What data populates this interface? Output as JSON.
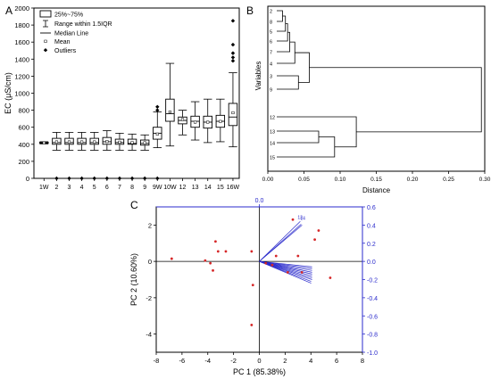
{
  "panels": {
    "a_label": "A",
    "b_label": "B",
    "c_label": "C"
  },
  "chart_data": [
    {
      "type": "box",
      "ylabel": "EC (μS/cm)",
      "ylim": [
        0,
        2000
      ],
      "yticks": [
        0,
        200,
        400,
        600,
        800,
        1000,
        1200,
        1400,
        1600,
        1800,
        2000
      ],
      "categories": [
        "1W",
        "2",
        "3",
        "4",
        "5",
        "6",
        "7",
        "8",
        "9",
        "9W",
        "10W",
        "12",
        "13",
        "14",
        "15",
        "16W"
      ],
      "legend": {
        "box": "25%~75%",
        "whisker": "Range within 1.5IQR",
        "median": "Median Line",
        "mean": "Mean",
        "outliers": "Outliers"
      },
      "boxes": [
        {
          "min": 405,
          "q1": 410,
          "median": 415,
          "q3": 425,
          "max": 430,
          "mean": 416
        },
        {
          "min": 330,
          "q1": 400,
          "median": 420,
          "q3": 470,
          "max": 540,
          "mean": 428
        },
        {
          "min": 330,
          "q1": 400,
          "median": 420,
          "q3": 470,
          "max": 540,
          "mean": 428
        },
        {
          "min": 330,
          "q1": 400,
          "median": 420,
          "q3": 470,
          "max": 540,
          "mean": 428
        },
        {
          "min": 330,
          "q1": 400,
          "median": 420,
          "q3": 470,
          "max": 540,
          "mean": 428
        },
        {
          "min": 330,
          "q1": 400,
          "median": 430,
          "q3": 480,
          "max": 560,
          "mean": 433
        },
        {
          "min": 330,
          "q1": 400,
          "median": 420,
          "q3": 460,
          "max": 530,
          "mean": 425
        },
        {
          "min": 330,
          "q1": 400,
          "median": 410,
          "q3": 460,
          "max": 520,
          "mean": 420
        },
        {
          "min": 330,
          "q1": 390,
          "median": 410,
          "q3": 450,
          "max": 510,
          "mean": 418
        },
        {
          "min": 360,
          "q1": 460,
          "median": 530,
          "q3": 600,
          "max": 780,
          "mean": 520
        },
        {
          "min": 380,
          "q1": 670,
          "median": 760,
          "q3": 930,
          "max": 1350,
          "mean": 780
        },
        {
          "min": 510,
          "q1": 640,
          "median": 680,
          "q3": 720,
          "max": 800,
          "mean": 690
        },
        {
          "min": 450,
          "q1": 600,
          "median": 670,
          "q3": 730,
          "max": 900,
          "mean": 660
        },
        {
          "min": 420,
          "q1": 590,
          "median": 660,
          "q3": 730,
          "max": 930,
          "mean": 660
        },
        {
          "min": 430,
          "q1": 600,
          "median": 670,
          "q3": 740,
          "max": 930,
          "mean": 668
        },
        {
          "min": 370,
          "q1": 620,
          "median": 720,
          "q3": 880,
          "max": 1240,
          "mean": 770
        }
      ],
      "outliers": [
        {
          "category": "2",
          "values": [
            0
          ]
        },
        {
          "category": "3",
          "values": [
            0
          ]
        },
        {
          "category": "4",
          "values": [
            0
          ]
        },
        {
          "category": "5",
          "values": [
            0
          ]
        },
        {
          "category": "6",
          "values": [
            0
          ]
        },
        {
          "category": "7",
          "values": [
            0
          ]
        },
        {
          "category": "8",
          "values": [
            0
          ]
        },
        {
          "category": "9",
          "values": [
            0
          ]
        },
        {
          "category": "9W",
          "values": [
            0,
            800,
            840
          ]
        },
        {
          "category": "16W",
          "values": [
            1380,
            1420,
            1470,
            1570,
            1850
          ]
        }
      ]
    },
    {
      "type": "dendrogram",
      "ylabel": "Variables",
      "xlabel": "Distance",
      "xlim": [
        0,
        0.3
      ],
      "xticks": [
        "0.00",
        "0.05",
        "0.10",
        "0.15",
        "0.20",
        "0.25",
        "0.30"
      ],
      "leaves": [
        "2",
        "8",
        "5",
        "6",
        "7",
        "4",
        "3",
        "9",
        "12",
        "13",
        "14",
        "15"
      ],
      "merges": [
        {
          "a": "2",
          "b": "8",
          "height": 0.008
        },
        {
          "a": "2-8",
          "b": "5",
          "height": 0.012
        },
        {
          "a": "2-8-5",
          "b": "6",
          "height": 0.015
        },
        {
          "a": "2-8-5-6",
          "b": "7",
          "height": 0.018
        },
        {
          "a": "2-8-5-6-7",
          "b": "4",
          "height": 0.025
        },
        {
          "a": "3",
          "b": "9",
          "height": 0.03
        },
        {
          "a": "G1",
          "b": "G2",
          "height": 0.045
        },
        {
          "a": "13",
          "b": "14",
          "height": 0.058
        },
        {
          "a": "13-14",
          "b": "15",
          "height": 0.08
        },
        {
          "a": "12",
          "b": "G3",
          "height": 0.11
        },
        {
          "a": "GA",
          "b": "GB",
          "height": 0.283
        }
      ]
    },
    {
      "type": "biplot",
      "xlabel": "PC 1 (85.38%)",
      "ylabel": "PC 2 (10.60%)",
      "xlim": [
        -8,
        8
      ],
      "ylim": [
        -5,
        3
      ],
      "xticks": [
        -8,
        -6,
        -4,
        -2,
        0,
        2,
        4,
        6,
        8
      ],
      "yticks": [
        -4,
        -2,
        0,
        2
      ],
      "top_axis": {
        "ticks": [
          "0.0"
        ]
      },
      "right_axis": {
        "ticks": [
          "0.6",
          "0.4",
          "0.2",
          "0.0",
          "-0.2",
          "-0.4",
          "-0.6",
          "-0.8",
          "-1.0"
        ]
      },
      "scores": [
        {
          "x": -6.8,
          "y": 0.15
        },
        {
          "x": -4.2,
          "y": 0.05
        },
        {
          "x": -3.8,
          "y": -0.1
        },
        {
          "x": -3.6,
          "y": -0.5
        },
        {
          "x": -3.4,
          "y": 1.1
        },
        {
          "x": -3.2,
          "y": 0.55
        },
        {
          "x": -2.6,
          "y": 0.55
        },
        {
          "x": -0.6,
          "y": 0.55
        },
        {
          "x": -0.5,
          "y": -1.3
        },
        {
          "x": -0.6,
          "y": -3.5
        },
        {
          "x": 0.5,
          "y": -0.1
        },
        {
          "x": 1.0,
          "y": -0.2
        },
        {
          "x": 1.3,
          "y": 0.3
        },
        {
          "x": 2.2,
          "y": -0.6
        },
        {
          "x": 2.6,
          "y": 2.3
        },
        {
          "x": 3.0,
          "y": 0.3
        },
        {
          "x": 3.3,
          "y": -0.6
        },
        {
          "x": 4.3,
          "y": 1.2
        },
        {
          "x": 4.6,
          "y": 1.7
        },
        {
          "x": 5.5,
          "y": -0.9
        }
      ],
      "loadings": [
        {
          "label": "13",
          "x": 0.45,
          "y": 0.44
        },
        {
          "label": "14",
          "x": 0.46,
          "y": 0.41
        },
        {
          "label": "",
          "x": 0.47,
          "y": 0.4
        },
        {
          "label": "",
          "x": 0.58,
          "y": -0.06
        },
        {
          "label": "",
          "x": 0.58,
          "y": -0.08
        },
        {
          "label": "",
          "x": 0.58,
          "y": -0.1
        },
        {
          "label": "",
          "x": 0.58,
          "y": -0.12
        },
        {
          "label": "",
          "x": 0.58,
          "y": -0.14
        },
        {
          "label": "",
          "x": 0.58,
          "y": -0.16
        },
        {
          "label": "",
          "x": 0.58,
          "y": -0.18
        },
        {
          "label": "",
          "x": 0.58,
          "y": -0.2
        },
        {
          "label": "",
          "x": 0.57,
          "y": -0.22
        },
        {
          "label": "",
          "x": 0.57,
          "y": -0.24
        }
      ],
      "colors": {
        "scores": "#d62728",
        "loadings": "#2b2bcc"
      }
    }
  ]
}
